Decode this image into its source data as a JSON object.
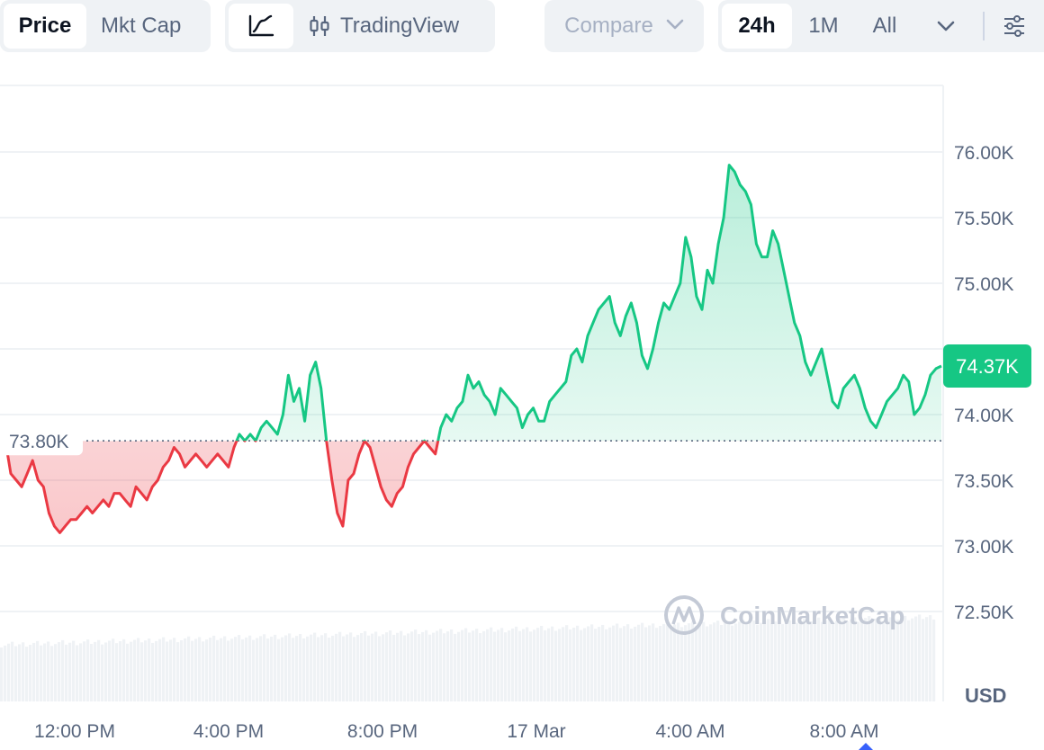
{
  "toolbar": {
    "price_label": "Price",
    "mktcap_label": "Mkt Cap",
    "tradingview_label": "TradingView",
    "compare_label": "Compare",
    "range_24h": "24h",
    "range_1m": "1M",
    "range_all": "All",
    "icons": [
      "line-chart-icon",
      "candlestick-icon",
      "chevron-down-icon",
      "settings-sliders-icon"
    ]
  },
  "watermark": "CoinMarketCap",
  "colors": {
    "up": "#16c784",
    "down": "#ea3943",
    "grid": "#eff2f5",
    "axis_text": "#58667e"
  },
  "chart_data": {
    "type": "area",
    "currency_label": "USD",
    "y_ticks": [
      72500,
      73000,
      73500,
      74000,
      74500,
      75000,
      75500,
      76000
    ],
    "y_tick_labels": [
      "72.50K",
      "73.00K",
      "73.50K",
      "74.00K",
      "",
      "75.00K",
      "75.50K",
      "76.00K"
    ],
    "x_tick_labels": [
      "12:00 PM",
      "4:00 PM",
      "8:00 PM",
      "17 Mar",
      "4:00 AM",
      "8:00 AM"
    ],
    "x_tick_hours": [
      12,
      16,
      20,
      24,
      28,
      32
    ],
    "x_range_hours": [
      10.1,
      34.5
    ],
    "baseline": {
      "value": 73800,
      "label": "73.80K"
    },
    "current": {
      "value": 74370,
      "label": "74.37K"
    },
    "y_range": [
      71900,
      76500
    ],
    "series": [
      {
        "values": [
          73800,
          73550,
          73500,
          73450,
          73550,
          73650,
          73500,
          73450,
          73250,
          73150,
          73100,
          73150,
          73200,
          73200,
          73250,
          73300,
          73250,
          73300,
          73350,
          73300,
          73400,
          73400,
          73350,
          73300,
          73450,
          73400,
          73350,
          73450,
          73500,
          73600,
          73650,
          73750,
          73700,
          73600,
          73650,
          73700,
          73650,
          73600,
          73650,
          73700,
          73650,
          73600,
          73750,
          73850,
          73800,
          73850,
          73800,
          73900,
          73950,
          73900,
          73850,
          74000,
          74300,
          74100,
          74200,
          73950,
          74300,
          74400,
          74200,
          73800,
          73500,
          73250,
          73150,
          73500,
          73550,
          73700,
          73800,
          73750,
          73600,
          73450,
          73350,
          73300,
          73400,
          73450,
          73600,
          73700,
          73750,
          73800,
          73750,
          73700,
          73900,
          74000,
          73950,
          74050,
          74100,
          74300,
          74200,
          74250,
          74150,
          74100,
          74000,
          74200,
          74150,
          74100,
          74050,
          73900,
          74000,
          74050,
          73950,
          73950,
          74100,
          74150,
          74200,
          74250,
          74450,
          74500,
          74400,
          74600,
          74700,
          74800,
          74850,
          74900,
          74700,
          74600,
          74750,
          74850,
          74700,
          74450,
          74350,
          74500,
          74700,
          74850,
          74800,
          74900,
          75000,
          75350,
          75200,
          74900,
          74800,
          75100,
          75000,
          75300,
          75500,
          75900,
          75850,
          75750,
          75700,
          75600,
          75300,
          75200,
          75200,
          75400,
          75300,
          75100,
          74900,
          74700,
          74600,
          74400,
          74300,
          74400,
          74500,
          74300,
          74100,
          74050,
          74200,
          74250,
          74300,
          74200,
          74050,
          73950,
          73900,
          74000,
          74100,
          74150,
          74200,
          74300,
          74250,
          74000,
          74050,
          74150,
          74300,
          74350,
          74370
        ]
      }
    ]
  }
}
